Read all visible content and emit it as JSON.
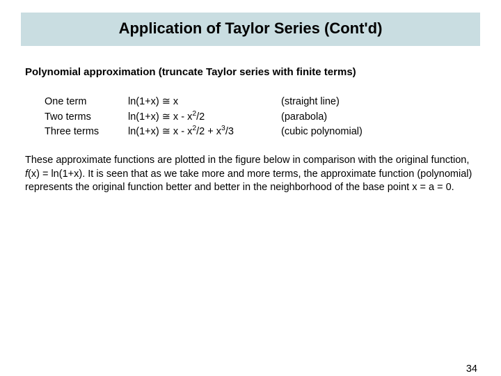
{
  "title": "Application of Taylor Series (Cont'd)",
  "subhead": "Polynomial approximation (truncate Taylor series with finite terms)",
  "rows": [
    {
      "term": "One term",
      "prefix": "ln(1+x) ≅ x",
      "suffix": "",
      "desc": "(straight line)"
    },
    {
      "term": "Two terms",
      "prefix": "ln(1+x) ≅ x - x",
      "mid1_sup": "2",
      "mid1_tail": "/2",
      "desc": "(parabola)"
    },
    {
      "term": "Three terms",
      "prefix": "ln(1+x) ≅ x - x",
      "mid1_sup": "2",
      "mid1_tail": "/2 + x",
      "mid2_sup": "3",
      "mid2_tail": "/3",
      "desc": "(cubic polynomial)"
    }
  ],
  "para": {
    "s1": "These approximate functions are plotted in the figure below in comparison with the original function, ",
    "fx": "f",
    "s2": "(x) = ln(1+x).  It is seen that as we take more and more terms, the approximate function (polynomial) represents the original function better and better in the neighborhood of the base point x = a = 0."
  },
  "pageNumber": "34",
  "colors": {
    "titleBarBg": "#c9dde1",
    "text": "#000000",
    "pageBg": "#ffffff"
  }
}
